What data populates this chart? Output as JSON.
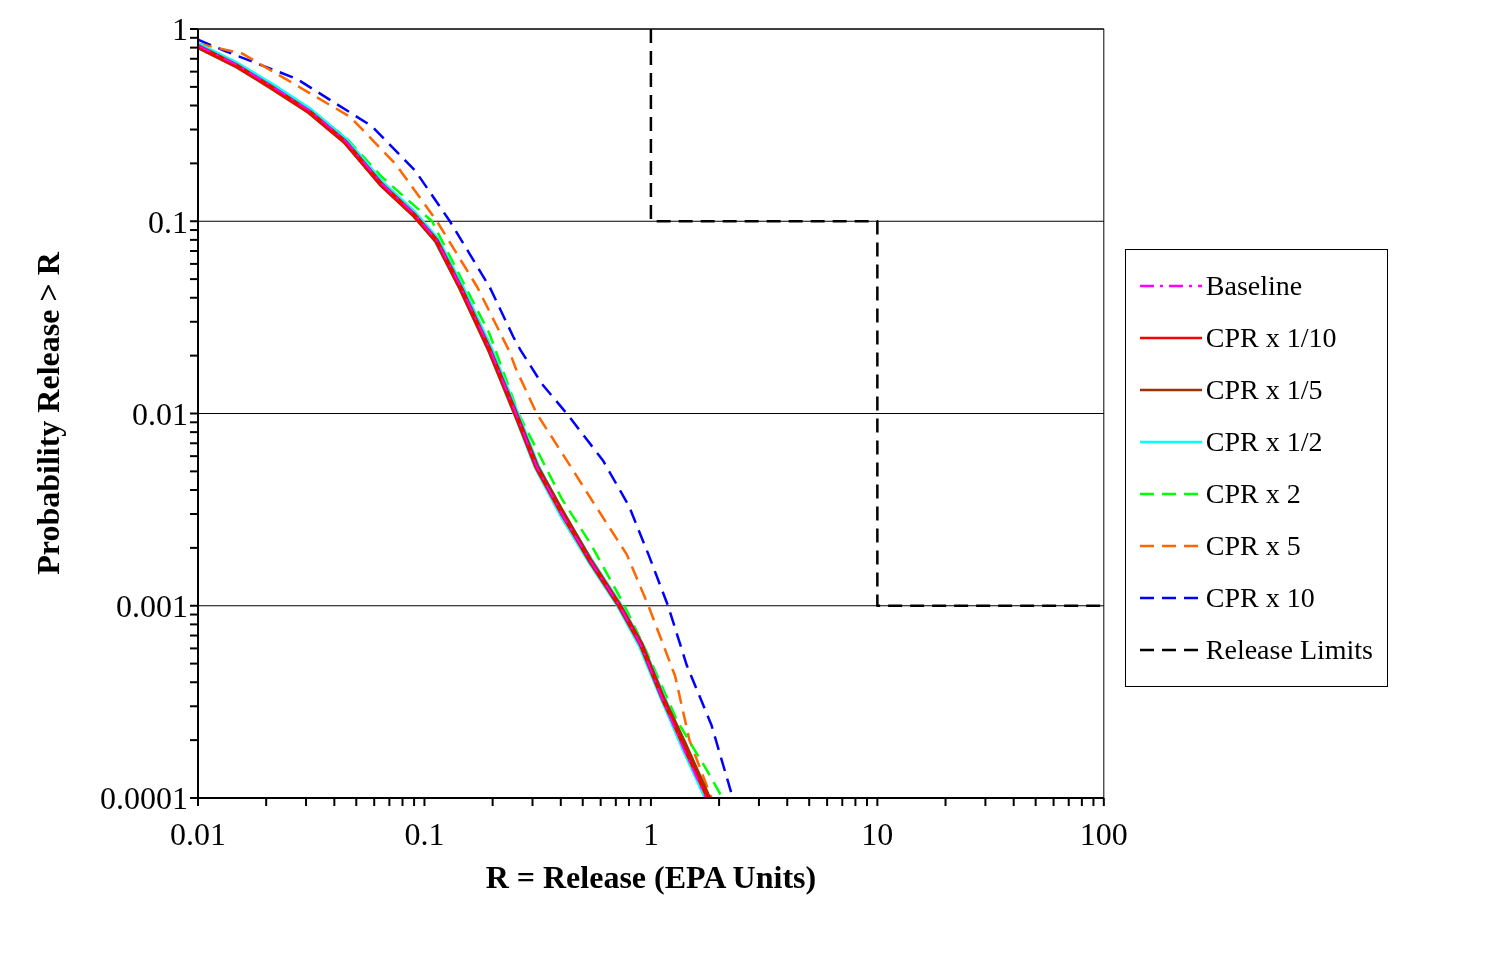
{
  "chart_data": {
    "type": "line",
    "xlabel": "R = Release (EPA Units)",
    "ylabel": "Probability Release > R",
    "log": "xy",
    "grid": "y",
    "legend": "right",
    "marker": "none",
    "xlim": [
      0.01,
      100
    ],
    "ylim": [
      0.0001,
      1
    ],
    "xticks": [
      0.01,
      {
        "value": 0.02,
        "label": null
      },
      {
        "value": 0.03,
        "label": null
      },
      {
        "value": 0.04,
        "label": null
      },
      {
        "value": 0.05,
        "label": null
      },
      {
        "value": 0.06,
        "label": null
      },
      {
        "value": 0.07,
        "label": null
      },
      {
        "value": 0.08,
        "label": null
      },
      {
        "value": 0.09,
        "label": null
      },
      0.1,
      {
        "value": 0.2,
        "label": null
      },
      {
        "value": 0.3,
        "label": null
      },
      {
        "value": 0.4,
        "label": null
      },
      {
        "value": 0.5,
        "label": null
      },
      {
        "value": 0.6,
        "label": null
      },
      {
        "value": 0.7,
        "label": null
      },
      {
        "value": 0.8,
        "label": null
      },
      {
        "value": 0.9,
        "label": null
      },
      1,
      {
        "value": 2,
        "label": null
      },
      {
        "value": 3,
        "label": null
      },
      {
        "value": 4,
        "label": null
      },
      {
        "value": 5,
        "label": null
      },
      {
        "value": 6,
        "label": null
      },
      {
        "value": 7,
        "label": null
      },
      {
        "value": 8,
        "label": null
      },
      {
        "value": 9,
        "label": null
      },
      10,
      {
        "value": 20,
        "label": null
      },
      {
        "value": 30,
        "label": null
      },
      {
        "value": 40,
        "label": null
      },
      {
        "value": 50,
        "label": null
      },
      {
        "value": 60,
        "label": null
      },
      {
        "value": 70,
        "label": null
      },
      {
        "value": 80,
        "label": null
      },
      {
        "value": 90,
        "label": null
      },
      100
    ],
    "yticks": [
      0.0001,
      {
        "value": 0.0002,
        "label": null
      },
      {
        "value": 0.0003,
        "label": null
      },
      {
        "value": 0.0004,
        "label": null
      },
      {
        "value": 0.0005,
        "label": null
      },
      {
        "value": 0.0006,
        "label": null
      },
      {
        "value": 0.0007,
        "label": null
      },
      {
        "value": 0.0008,
        "label": null
      },
      {
        "value": 0.0009,
        "label": null
      },
      0.001,
      {
        "value": 0.002,
        "label": null
      },
      {
        "value": 0.003,
        "label": null
      },
      {
        "value": 0.004,
        "label": null
      },
      {
        "value": 0.005,
        "label": null
      },
      {
        "value": 0.006,
        "label": null
      },
      {
        "value": 0.007,
        "label": null
      },
      {
        "value": 0.008,
        "label": null
      },
      {
        "value": 0.009,
        "label": null
      },
      0.01,
      {
        "value": 0.02,
        "label": null
      },
      {
        "value": 0.03,
        "label": null
      },
      {
        "value": 0.04,
        "label": null
      },
      {
        "value": 0.05,
        "label": null
      },
      {
        "value": 0.06,
        "label": null
      },
      {
        "value": 0.07,
        "label": null
      },
      {
        "value": 0.08,
        "label": null
      },
      {
        "value": 0.09,
        "label": null
      },
      0.1,
      {
        "value": 0.2,
        "label": null
      },
      {
        "value": 0.3,
        "label": null
      },
      {
        "value": 0.4,
        "label": null
      },
      {
        "value": 0.5,
        "label": null
      },
      {
        "value": 0.6,
        "label": null
      },
      {
        "value": 0.7,
        "label": null
      },
      {
        "value": 0.8,
        "label": null
      },
      {
        "value": 0.9,
        "label": null
      },
      1
    ],
    "series": [
      {
        "name": "Baseline",
        "color": "#ff00ff",
        "line_style": "dashdot",
        "x": [
          0.01,
          0.0149,
          0.0215,
          0.031,
          0.0447,
          0.0645,
          0.0897,
          0.113,
          0.145,
          0.194,
          0.26,
          0.313,
          0.404,
          0.542,
          0.727,
          0.906,
          1.13,
          1.41,
          1.75
        ],
        "values": [
          0.82,
          0.65,
          0.5,
          0.378,
          0.263,
          0.158,
          0.11,
          0.08,
          0.0455,
          0.0218,
          0.0093,
          0.0053,
          0.003,
          0.0017,
          0.001,
          0.00062,
          0.00032,
          0.000175,
          0.0001
        ]
      },
      {
        "name": "CPR x 1/10",
        "color": "#ff0000",
        "line_style": "solid",
        "x": [
          0.01,
          0.0149,
          0.0215,
          0.031,
          0.0447,
          0.0645,
          0.0897,
          0.113,
          0.145,
          0.194,
          0.26,
          0.313,
          0.404,
          0.542,
          0.727,
          0.906,
          1.13,
          1.41,
          1.78
        ],
        "values": [
          0.81,
          0.64,
          0.49,
          0.37,
          0.258,
          0.155,
          0.108,
          0.079,
          0.0445,
          0.0213,
          0.0091,
          0.0052,
          0.003,
          0.0017,
          0.001,
          0.00062,
          0.00033,
          0.00018,
          0.0001
        ]
      },
      {
        "name": "CPR x 1/5",
        "color": "#993300",
        "line_style": "solid",
        "x": [
          0.01,
          0.0149,
          0.0215,
          0.031,
          0.0447,
          0.0645,
          0.0897,
          0.113,
          0.145,
          0.194,
          0.26,
          0.313,
          0.404,
          0.542,
          0.727,
          0.906,
          1.13,
          1.41,
          1.8
        ],
        "values": [
          0.81,
          0.64,
          0.49,
          0.37,
          0.258,
          0.155,
          0.108,
          0.079,
          0.0445,
          0.0213,
          0.0092,
          0.0053,
          0.0031,
          0.0017,
          0.001,
          0.00063,
          0.00033,
          0.00019,
          0.0001
        ]
      },
      {
        "name": "CPR x 1/2",
        "color": "#00ffff",
        "line_style": "solid",
        "x": [
          0.01,
          0.0149,
          0.0215,
          0.031,
          0.0447,
          0.0645,
          0.0897,
          0.113,
          0.145,
          0.194,
          0.26,
          0.313,
          0.404,
          0.542,
          0.727,
          0.906,
          1.13,
          1.41,
          1.77
        ],
        "values": [
          0.82,
          0.65,
          0.5,
          0.378,
          0.263,
          0.158,
          0.11,
          0.08,
          0.0455,
          0.0218,
          0.0093,
          0.0053,
          0.003,
          0.0017,
          0.001,
          0.00062,
          0.00033,
          0.00018,
          0.0001
        ]
      },
      {
        "name": "CPR x 2",
        "color": "#00ff00",
        "line_style": "dashed",
        "x": [
          0.01,
          0.0215,
          0.0447,
          0.0645,
          0.108,
          0.1446,
          0.194,
          0.26,
          0.404,
          0.542,
          0.765,
          0.975,
          1.31,
          1.75,
          2.07
        ],
        "values": [
          0.825,
          0.51,
          0.275,
          0.171,
          0.1,
          0.051,
          0.0259,
          0.01,
          0.0036,
          0.0021,
          0.001,
          0.00055,
          0.00025,
          0.000142,
          0.0001
        ]
      },
      {
        "name": "CPR x 5",
        "color": "#ff6600",
        "line_style": "dashed",
        "x": [
          0.01,
          0.0157,
          0.047,
          0.0747,
          0.1135,
          0.171,
          0.236,
          0.254,
          0.313,
          0.425,
          0.57,
          0.782,
          0.975,
          1.28,
          1.48,
          1.85
        ],
        "values": [
          0.84,
          0.745,
          0.349,
          0.198,
          0.1,
          0.0455,
          0.0213,
          0.017,
          0.01,
          0.0057,
          0.0033,
          0.00185,
          0.001,
          0.00043,
          0.0002,
          0.0001
        ]
      },
      {
        "name": "CPR x 10",
        "color": "#0000ff",
        "line_style": "dashed",
        "x": [
          0.01,
          0.0131,
          0.0273,
          0.0586,
          0.0911,
          0.1295,
          0.194,
          0.247,
          0.266,
          0.331,
          0.425,
          0.614,
          0.8,
          0.975,
          1.19,
          1.44,
          1.85,
          2.3
        ],
        "values": [
          0.88,
          0.77,
          0.55,
          0.312,
          0.183,
          0.1,
          0.0455,
          0.025,
          0.0213,
          0.0142,
          0.01,
          0.0057,
          0.0033,
          0.00185,
          0.001,
          0.00049,
          0.00024,
          0.0001
        ]
      },
      {
        "name": "Release Limits",
        "color": "#000000",
        "line_style": "dashed",
        "x": [
          1,
          1,
          10,
          10,
          100
        ],
        "values": [
          1,
          0.1,
          0.1,
          0.001,
          0.001
        ]
      }
    ]
  }
}
